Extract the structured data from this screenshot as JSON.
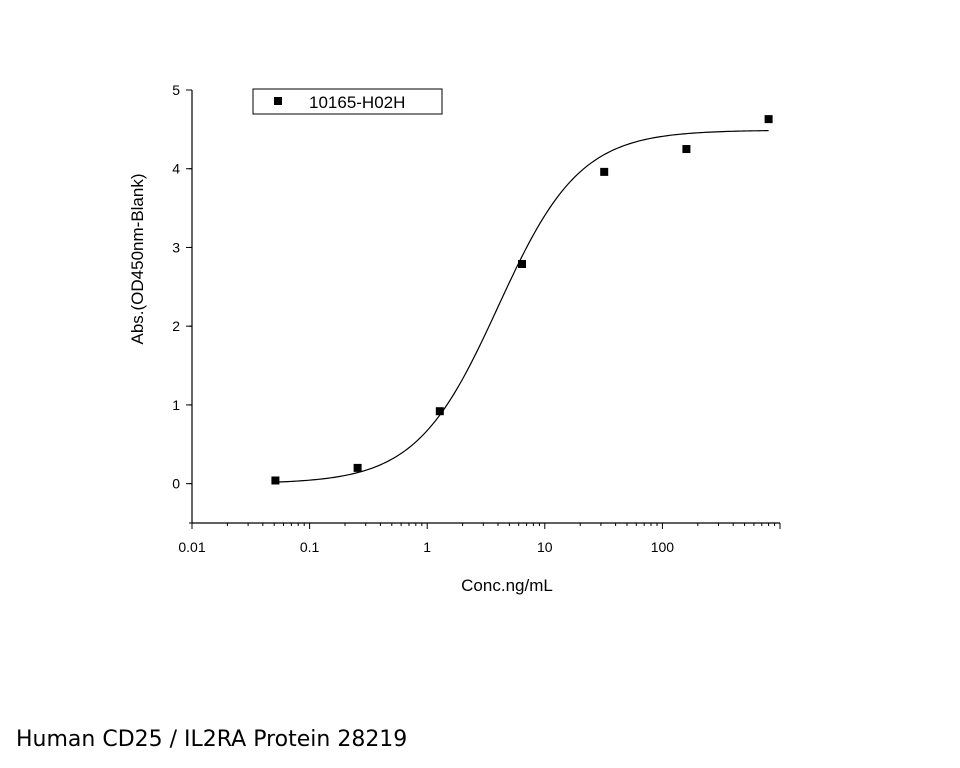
{
  "caption": "Human CD25 / IL2RA Protein 28219",
  "chart_data": {
    "type": "scatter",
    "title": "",
    "xlabel": "Conc.ng/mL",
    "ylabel": "Abs.(OD450nm-Blank)",
    "x_scale": "log",
    "xlim": [
      0.01,
      1000
    ],
    "ylim": [
      -0.5,
      5
    ],
    "x_ticks": [
      0.01,
      0.1,
      1,
      10,
      100
    ],
    "x_tick_labels": [
      "0.01",
      "0.1",
      "1",
      "10",
      "100"
    ],
    "y_ticks": [
      0,
      1,
      2,
      3,
      4,
      5
    ],
    "y_tick_labels": [
      "0",
      "1",
      "2",
      "3",
      "4",
      "5"
    ],
    "grid": false,
    "legend_position": "top-left",
    "series": [
      {
        "name": "10165-H02H",
        "marker": "square",
        "color": "#000000",
        "x": [
          0.0512,
          0.256,
          1.28,
          6.4,
          32,
          160,
          800
        ],
        "y": [
          0.04,
          0.2,
          0.92,
          2.79,
          3.96,
          4.25,
          4.63
        ]
      }
    ],
    "fit_curve": {
      "model": "4PL",
      "bottom": 0.0,
      "top": 4.49,
      "ec50": 4.0,
      "hill": 1.25,
      "color": "#000000"
    }
  }
}
